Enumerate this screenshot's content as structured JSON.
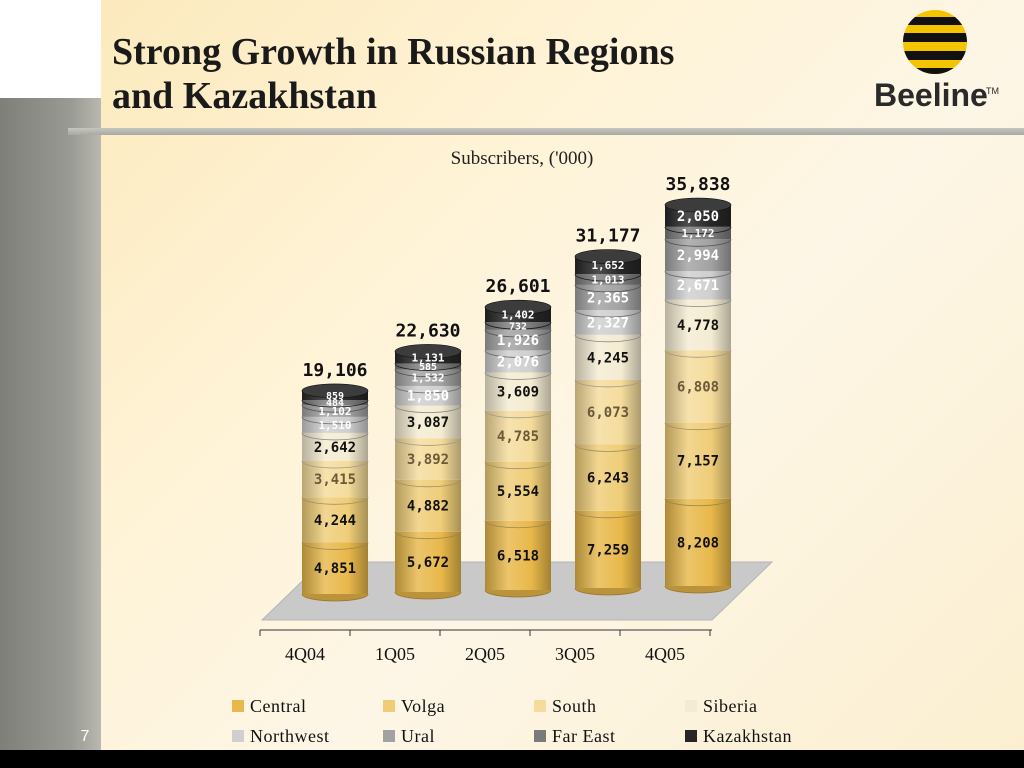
{
  "slide": {
    "title_line1": "Strong Growth in Russian Regions",
    "title_line2": "and Kazakhstan",
    "page_number": "7"
  },
  "logo": {
    "text": "Beeline",
    "trademark": "TM"
  },
  "chart_data": {
    "type": "bar",
    "stacked": true,
    "title": "Subscribers, ('000)",
    "xlabel": "",
    "ylabel": "",
    "categories": [
      "4Q04",
      "1Q05",
      "2Q05",
      "3Q05",
      "4Q05"
    ],
    "totals": [
      "19,106",
      "22,630",
      "26,601",
      "31,177",
      "35,838"
    ],
    "total_values": [
      19106,
      22630,
      26601,
      31177,
      35838
    ],
    "series": [
      {
        "name": "Central",
        "color": "#e8b84a",
        "values": [
          4851,
          5672,
          6518,
          7259,
          8208
        ],
        "labels": [
          "4,851",
          "5,672",
          "6,518",
          "7,259",
          "8,208"
        ]
      },
      {
        "name": "Volga",
        "color": "#efcd78",
        "values": [
          4244,
          4882,
          5554,
          6243,
          7157
        ],
        "labels": [
          "4,244",
          "4,882",
          "5,554",
          "6,243",
          "7,157"
        ]
      },
      {
        "name": "South",
        "color": "#f5dc9c",
        "values": [
          3415,
          3892,
          4785,
          6073,
          6808
        ],
        "labels": [
          "3,415",
          "3,892",
          "4,785",
          "6,073",
          "6,808"
        ]
      },
      {
        "name": "Siberia",
        "color": "#f4ecd2",
        "values": [
          2642,
          3087,
          3609,
          4245,
          4778
        ],
        "labels": [
          "2,642",
          "3,087",
          "3,609",
          "4,245",
          "4,778"
        ]
      },
      {
        "name": "Northwest",
        "color": "#cfcfcf",
        "values": [
          1510,
          1850,
          2076,
          2327,
          2671
        ],
        "labels": [
          "1,510",
          "1,850",
          "2,076",
          "2,327",
          "2,671"
        ]
      },
      {
        "name": "Ural",
        "color": "#a2a2a2",
        "values": [
          1102,
          1532,
          1926,
          2365,
          2994
        ],
        "labels": [
          "1,102",
          "1,532",
          "1,926",
          "2,365",
          "2,994"
        ]
      },
      {
        "name": "Far East",
        "color": "#7b7b7b",
        "values": [
          484,
          585,
          732,
          1013,
          1172
        ],
        "labels": [
          "484",
          "585",
          "732",
          "1,013",
          "1,172"
        ]
      },
      {
        "name": "Kazakhstan",
        "color": "#262626",
        "values": [
          859,
          1131,
          1402,
          1652,
          2050
        ],
        "labels": [
          "859",
          "1,131",
          "1,402",
          "1,652",
          "2,050"
        ]
      }
    ],
    "label_colors": [
      "#111111",
      "#111111",
      "#6a5a3a",
      "#111111",
      "#ffffff",
      "#ffffff",
      "#ffffff",
      "#ffffff"
    ],
    "legend_position": "bottom",
    "grid": false
  }
}
